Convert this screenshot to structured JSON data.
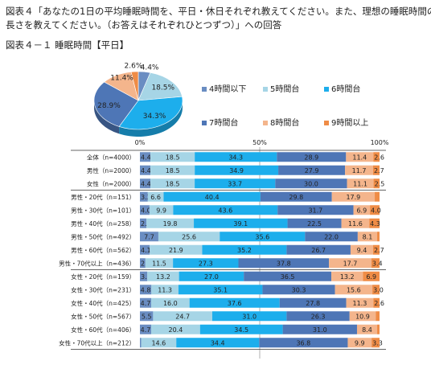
{
  "header": {
    "title_line1": "図表４「あなたの1日の平均睡眠時間を、平日・休日それぞれ教えてください。また、理想の睡眠時間の",
    "title_line2": "長さを教えてください。（お答えはそれぞれひとつずつ）」への回答",
    "subtitle": "図表４－１ 睡眠時間【平日】"
  },
  "colors": [
    "#6a8dc2",
    "#a6d5e6",
    "#1daeec",
    "#4e76b6",
    "#f4b58c",
    "#ef8c46"
  ],
  "chart_data": [
    {
      "type": "pie",
      "series_names": [
        "4時間以下",
        "5時間台",
        "6時間台",
        "7時間台",
        "8時間台",
        "9時間以上"
      ],
      "values": [
        4.4,
        18.5,
        34.3,
        28.9,
        11.4,
        2.6
      ],
      "labels": [
        "4.4%",
        "18.5%",
        "34.3%",
        "28.9%",
        "11.4%",
        "2.6%"
      ],
      "legend": "right"
    },
    {
      "type": "bar",
      "orientation": "horizontal",
      "stacked": "percent",
      "xlim": [
        0,
        100
      ],
      "xticks": [
        "0%",
        "50%",
        "100%"
      ],
      "series_names": [
        "4時間以下",
        "5時間台",
        "6時間台",
        "7時間台",
        "8時間台",
        "9時間以上"
      ],
      "rows": [
        {
          "label": "全体（n=4000）",
          "values": [
            4.4,
            18.5,
            34.3,
            28.9,
            11.4,
            2.6
          ]
        },
        {
          "label": "男性（n=2000）",
          "values": [
            4.4,
            18.5,
            34.9,
            27.9,
            11.7,
            2.7
          ]
        },
        {
          "label": "女性（n=2000）",
          "values": [
            4.4,
            18.5,
            33.7,
            30.0,
            11.1,
            2.5
          ]
        },
        {
          "label": "男性・20代（n=151）",
          "values": [
            3.3,
            6.6,
            40.4,
            29.8,
            17.9,
            2.0
          ]
        },
        {
          "label": "男性・30代（n=101）",
          "values": [
            4.0,
            9.9,
            43.6,
            31.7,
            6.9,
            4.0
          ]
        },
        {
          "label": "男性・40代（n=258）",
          "values": [
            2.7,
            19.8,
            39.1,
            22.5,
            11.6,
            4.3
          ]
        },
        {
          "label": "男性・50代（n=492）",
          "values": [
            7.7,
            25.6,
            35.6,
            22.0,
            8.1,
            1.0
          ]
        },
        {
          "label": "男性・60代（n=562）",
          "values": [
            4.1,
            21.9,
            35.2,
            26.7,
            9.4,
            2.7
          ]
        },
        {
          "label": "男性・70代以上（n=436）",
          "values": [
            2.3,
            11.5,
            27.3,
            37.8,
            17.7,
            3.4
          ]
        },
        {
          "label": "女性・20代（n=159）",
          "values": [
            3.1,
            13.2,
            27.0,
            36.5,
            13.2,
            6.9
          ]
        },
        {
          "label": "女性・30代（n=231）",
          "values": [
            4.8,
            11.3,
            35.1,
            30.3,
            15.6,
            3.0
          ]
        },
        {
          "label": "女性・40代（n=425）",
          "values": [
            4.7,
            16.0,
            37.6,
            27.8,
            11.3,
            2.6
          ]
        },
        {
          "label": "女性・50代（n=567）",
          "values": [
            5.5,
            24.7,
            31.0,
            26.3,
            10.9,
            1.6
          ]
        },
        {
          "label": "女性・60代（n=406）",
          "values": [
            4.7,
            20.4,
            34.5,
            31.0,
            8.4,
            1.0
          ]
        },
        {
          "label": "女性・70代以上（n=212）",
          "values": [
            0.5,
            14.6,
            34.4,
            36.8,
            9.9,
            3.3
          ]
        }
      ],
      "value_labels": [
        [
          "4.4",
          "18.5",
          "34.3",
          "28.9",
          "11.4",
          "2.6"
        ],
        [
          "4.4",
          "18.5",
          "34.9",
          "27.9",
          "11.7",
          "2.7"
        ],
        [
          "4.4",
          "18.5",
          "33.7",
          "30.0",
          "11.1",
          "2.5"
        ],
        [
          "3.3",
          "6.6",
          "40.4",
          "29.8",
          "17.9",
          ""
        ],
        [
          "4.0",
          "9.9",
          "43.6",
          "31.7",
          "6.9",
          "4.0"
        ],
        [
          "2.7",
          "19.8",
          "39.1",
          "22.5",
          "11.6",
          "4.3"
        ],
        [
          "7.7",
          "25.6",
          "35.6",
          "22.0",
          "8.1",
          ""
        ],
        [
          "4.1",
          "21.9",
          "35.2",
          "26.7",
          "9.4",
          "2.7"
        ],
        [
          "2.3",
          "11.5",
          "27.3",
          "37.8",
          "17.7",
          "3.4"
        ],
        [
          "3.1",
          "13.2",
          "27.0",
          "36.5",
          "13.2",
          "6.9"
        ],
        [
          "4.8",
          "11.3",
          "35.1",
          "30.3",
          "15.6",
          "3.0"
        ],
        [
          "4.7",
          "16.0",
          "37.6",
          "27.8",
          "11.3",
          "2.6"
        ],
        [
          "5.5",
          "24.7",
          "31.0",
          "26.3",
          "10.9",
          ""
        ],
        [
          "4.7",
          "20.4",
          "34.5",
          "31.0",
          "8.4",
          ""
        ],
        [
          "",
          "14.6",
          "34.4",
          "36.8",
          "9.9",
          "3.3"
        ]
      ]
    }
  ]
}
